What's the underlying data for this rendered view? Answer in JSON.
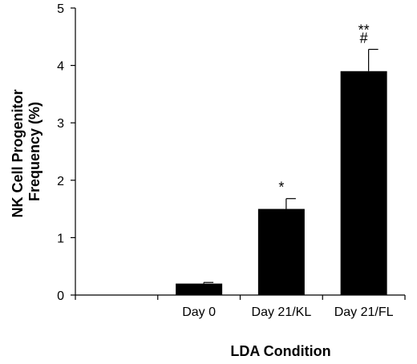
{
  "chart_data": {
    "type": "bar",
    "categories": [
      "",
      "Day 0",
      "Day 21/KL",
      "Day 21/FL"
    ],
    "values": [
      null,
      0.2,
      1.5,
      3.9
    ],
    "errors": [
      null,
      0.02,
      0.18,
      0.38
    ],
    "annotations": [
      "",
      "",
      "*",
      "**\n#"
    ],
    "title": "",
    "xlabel": "LDA Condition",
    "ylabel_lines": [
      "NK Cell Progenitor",
      "Frequency (%)"
    ],
    "ylim": [
      0,
      5
    ],
    "yticks": [
      "0",
      "1",
      "2",
      "3",
      "4",
      "5"
    ],
    "grid": false,
    "bar_color": "#000000"
  }
}
